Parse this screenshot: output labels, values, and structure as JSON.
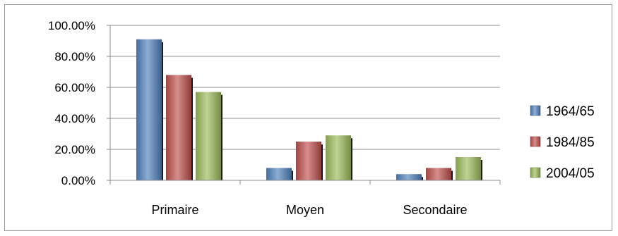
{
  "chart_data": {
    "type": "bar",
    "categories": [
      "Primaire",
      "Moyen",
      "Secondaire"
    ],
    "series": [
      {
        "name": "1964/65",
        "values": [
          0.91,
          0.08,
          0.04
        ],
        "color": "#4f81bd"
      },
      {
        "name": "1984/85",
        "values": [
          0.68,
          0.25,
          0.08
        ],
        "color": "#c0504d"
      },
      {
        "name": "2004/05",
        "values": [
          0.57,
          0.29,
          0.15
        ],
        "color": "#9bbb59"
      }
    ],
    "ylim": [
      0,
      1.0
    ],
    "yticks": [
      "0.00%",
      "20.00%",
      "40.00%",
      "60.00%",
      "80.00%",
      "100.00%"
    ],
    "grid": true,
    "legend": "right",
    "title": "",
    "xlabel": "",
    "ylabel": ""
  }
}
